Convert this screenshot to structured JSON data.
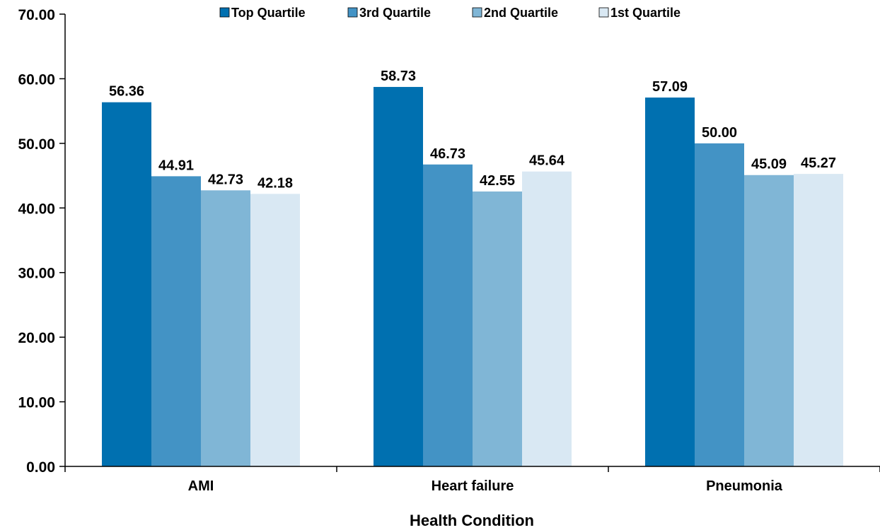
{
  "chart_data": {
    "type": "bar",
    "title": "",
    "xlabel": "Health Condition",
    "ylabel": "",
    "ylim": [
      0,
      70
    ],
    "yticks": [
      "0.00",
      "10.00",
      "20.00",
      "30.00",
      "40.00",
      "50.00",
      "60.00",
      "70.00"
    ],
    "categories": [
      "AMI",
      "Heart failure",
      "Pneumonia"
    ],
    "series": [
      {
        "name": "Top Quartile",
        "color": "#0070B0",
        "values": [
          56.36,
          58.73,
          57.09
        ],
        "labels": [
          "56.36",
          "58.73",
          "57.09"
        ]
      },
      {
        "name": "3rd Quartile",
        "color": "#4393C5",
        "values": [
          44.91,
          46.73,
          50.0
        ],
        "labels": [
          "44.91",
          "46.73",
          "50.00"
        ]
      },
      {
        "name": "2nd Quartile",
        "color": "#80B6D6",
        "values": [
          42.73,
          42.55,
          45.09
        ],
        "labels": [
          "42.73",
          "42.55",
          "45.09"
        ]
      },
      {
        "name": "1st Quartile",
        "color": "#D9E8F3",
        "values": [
          42.18,
          45.64,
          45.27
        ],
        "labels": [
          "42.18",
          "45.64",
          "45.27"
        ]
      }
    ],
    "legend_position": "top",
    "grid": false
  }
}
